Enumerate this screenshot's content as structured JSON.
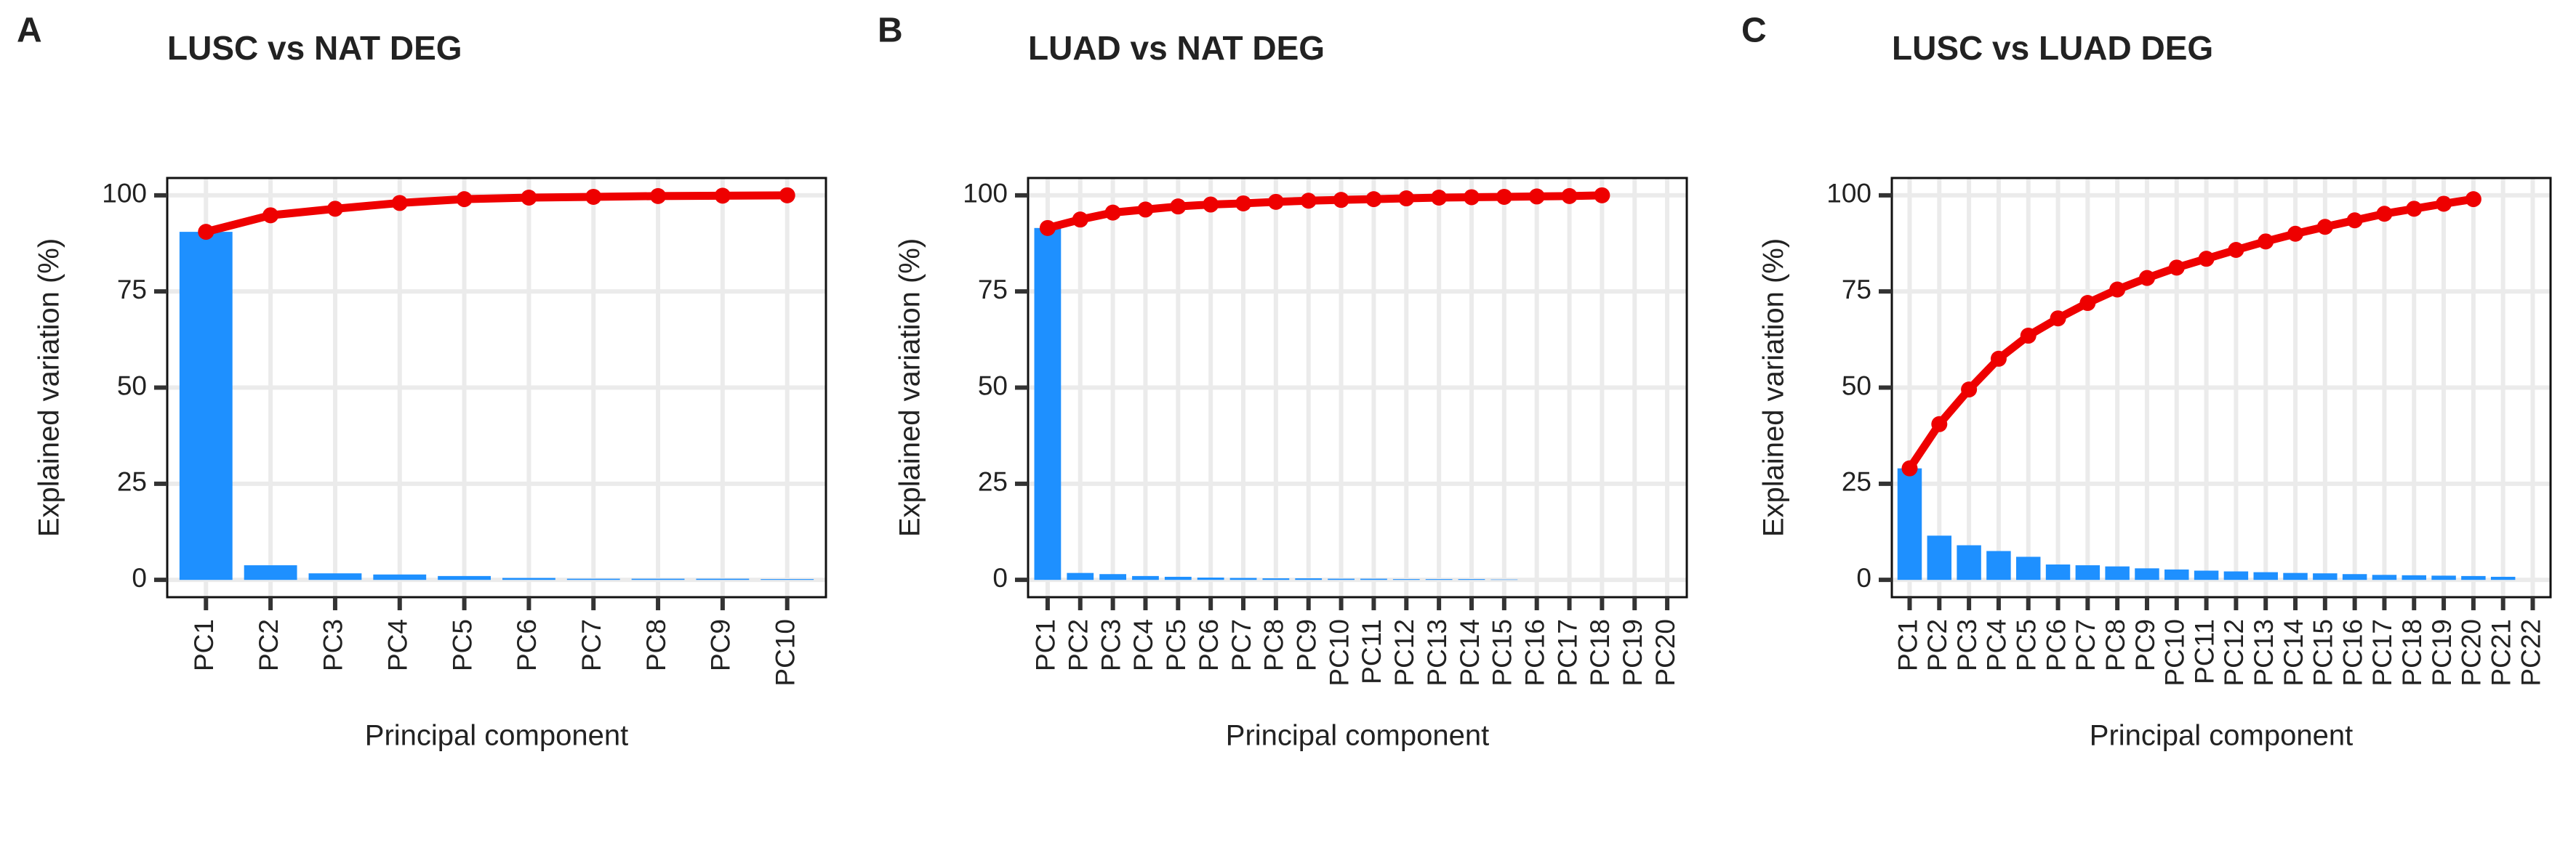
{
  "chart_data": [
    {
      "type": "bar-line",
      "panel": "A",
      "title": "LUSC vs NAT DEG",
      "x_label": "Principal component",
      "y_label": "Explained variation (%)",
      "categories": [
        "PC1",
        "PC2",
        "PC3",
        "PC4",
        "PC5",
        "PC6",
        "PC7",
        "PC8",
        "PC9",
        "PC10"
      ],
      "series": [
        {
          "kind": "bar",
          "color": "#1e90ff",
          "values": [
            90.5,
            3.8,
            1.7,
            1.4,
            1.0,
            0.5,
            0.3,
            0.3,
            0.3,
            0.2
          ]
        },
        {
          "kind": "line",
          "color": "#ee0000",
          "values": [
            90.5,
            94.8,
            96.5,
            98.0,
            99.0,
            99.4,
            99.6,
            99.8,
            99.9,
            100
          ]
        }
      ],
      "ylim": [
        -4.5,
        104.5
      ],
      "yticks": [
        0,
        25,
        50,
        75,
        100
      ],
      "grid": true
    },
    {
      "type": "bar-line",
      "panel": "B",
      "title": "LUAD vs NAT DEG",
      "x_label": "Principal component",
      "y_label": "Explained variation (%)",
      "categories": [
        "PC1",
        "PC2",
        "PC3",
        "PC4",
        "PC5",
        "PC6",
        "PC7",
        "PC8",
        "PC9",
        "PC10",
        "PC11",
        "PC12",
        "PC13",
        "PC14",
        "PC15",
        "PC16",
        "PC17",
        "PC18",
        "PC19",
        "PC20"
      ],
      "series": [
        {
          "kind": "bar",
          "color": "#1e90ff",
          "values": [
            91.5,
            1.8,
            1.5,
            1.0,
            0.8,
            0.6,
            0.5,
            0.4,
            0.4,
            0.3,
            0.3,
            0.2,
            0.2,
            0.2,
            0.1,
            null,
            null,
            null,
            null,
            null
          ]
        },
        {
          "kind": "line",
          "color": "#ee0000",
          "values": [
            91.5,
            93.7,
            95.5,
            96.3,
            97.1,
            97.6,
            97.9,
            98.3,
            98.6,
            98.8,
            99.0,
            99.2,
            99.4,
            99.5,
            99.6,
            99.7,
            99.8,
            100,
            null,
            null
          ]
        }
      ],
      "ylim": [
        -4.5,
        104.5
      ],
      "yticks": [
        0,
        25,
        50,
        75,
        100
      ],
      "grid": true
    },
    {
      "type": "bar-line",
      "panel": "C",
      "title": "LUSC vs LUAD DEG",
      "x_label": "Principal component",
      "y_label": "Explained variation (%)",
      "categories": [
        "PC1",
        "PC2",
        "PC3",
        "PC4",
        "PC5",
        "PC6",
        "PC7",
        "PC8",
        "PC9",
        "PC10",
        "PC11",
        "PC12",
        "PC13",
        "PC14",
        "PC15",
        "PC16",
        "PC17",
        "PC18",
        "PC19",
        "PC20",
        "PC21",
        "PC22"
      ],
      "series": [
        {
          "kind": "bar",
          "color": "#1e90ff",
          "values": [
            29,
            11.5,
            9,
            7.5,
            6,
            4,
            3.8,
            3.5,
            3,
            2.7,
            2.4,
            2.2,
            2,
            1.8,
            1.7,
            1.5,
            1.3,
            1.2,
            1.1,
            1,
            0.8,
            null
          ]
        },
        {
          "kind": "line",
          "color": "#ee0000",
          "values": [
            29,
            40.5,
            49.5,
            57.5,
            63.5,
            68,
            72,
            75.5,
            78.5,
            81.2,
            83.5,
            85.8,
            88,
            90,
            91.8,
            93.5,
            95.2,
            96.5,
            97.8,
            99,
            null,
            null
          ]
        }
      ],
      "ylim": [
        -4.5,
        104.5
      ],
      "yticks": [
        0,
        25,
        50,
        75,
        100
      ],
      "grid": true
    }
  ]
}
